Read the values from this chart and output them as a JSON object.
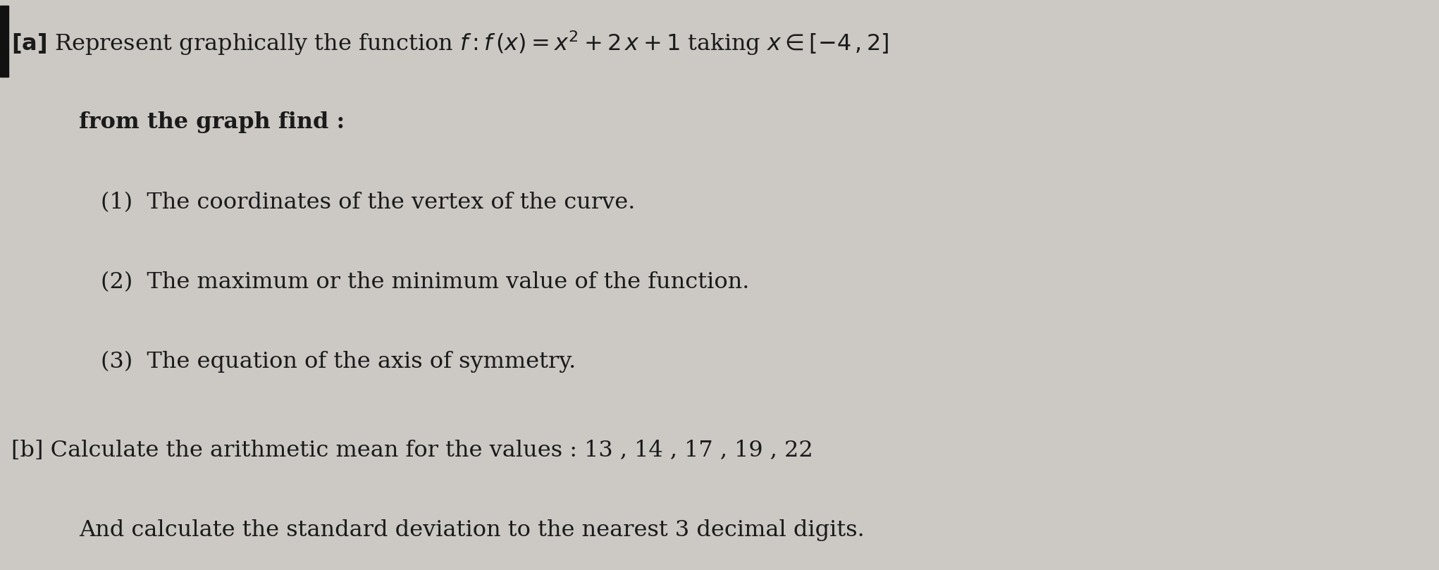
{
  "bg_color": "#ccc8c4",
  "text_color": "#1a1a1a",
  "line1_a": "[a] Represent graphically the function ",
  "line1_b": "f",
  "line1_c": " : ",
  "line1_d": "f",
  "line1_e": " (",
  "line1_f": "x",
  "line1_g": ") = ",
  "line1_h": "x",
  "line1_i": "2",
  "line1_j": " + 2 ",
  "line1_k": "x",
  "line1_l": " + 1 taking ",
  "line1_m": "x",
  "line1_n": "∈",
  "line1_o": "[−4 , 2]",
  "line2": "from the graph find :",
  "line3": "(1)  The coordinates of the vertex of the curve.",
  "line4": "(2)  The maximum or the minimum value of the function.",
  "line5": "(3)  The equation of the axis of symmetry.",
  "line6": "[b] Calculate the arithmetic mean for the values : 13 , 14 , 17 , 19 , 22",
  "line7": "And calculate the standard deviation to the nearest 3 decimal digits.",
  "left_bar_color": "#111111",
  "figsize": [
    20.42,
    8.09
  ],
  "dpi": 100,
  "fontsize": 23
}
